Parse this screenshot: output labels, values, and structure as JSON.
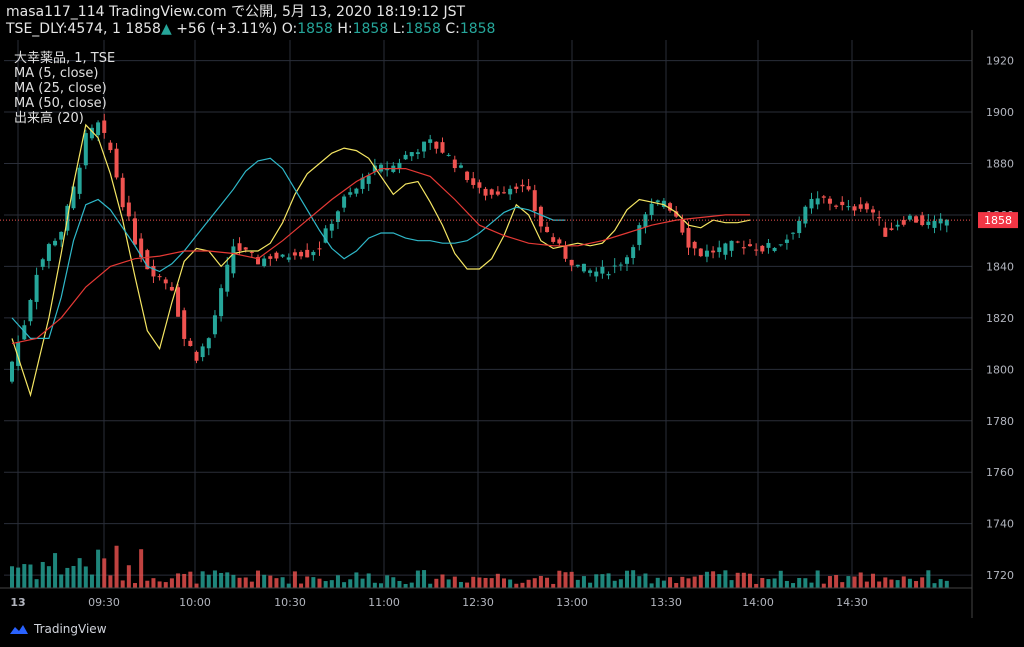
{
  "header": {
    "publish_line": "masa117_114 TradingView.com で公開, 5月 13, 2020 18:19:12 JST",
    "symbol": "TSE_DLY:4574, 1",
    "last": "1858",
    "change": "+56 (+3.11%)",
    "o_label": "O:",
    "o_value": "1858",
    "h_label": "H:",
    "h_value": "1858",
    "l_label": "L:",
    "l_value": "1858",
    "c_label": "C:",
    "c_value": "1858"
  },
  "legend": {
    "symbol_line": "大幸薬品, 1, TSE",
    "ma5": "MA (5, close)",
    "ma25": "MA (25, close)",
    "ma50": "MA (50, close)",
    "volume": "出来高 (20)"
  },
  "price_badge": "1858",
  "footer": {
    "brand": "TradingView"
  },
  "colors": {
    "up": "#26a69a",
    "down": "#ef5350",
    "ma5": "#f5e663",
    "ma25": "#2fb8c9",
    "ma50": "#e53935",
    "grid": "#2a2e39",
    "badge": "#f23645"
  },
  "chart_data": {
    "type": "candlestick",
    "y_ticks": [
      1720,
      1740,
      1760,
      1780,
      1800,
      1820,
      1840,
      1860,
      1880,
      1900,
      1920
    ],
    "ylim": [
      1715,
      1928
    ],
    "x_ticks": [
      "13",
      "09:30",
      "10:00",
      "10:30",
      "11:00",
      "12:30",
      "13:00",
      "13:30",
      "14:00",
      "14:30"
    ],
    "last_price": 1858,
    "price_path": [
      [
        0,
        1803
      ],
      [
        2,
        1818
      ],
      [
        4,
        1838
      ],
      [
        6,
        1848
      ],
      [
        8,
        1854
      ],
      [
        10,
        1870
      ],
      [
        12,
        1890
      ],
      [
        14,
        1895
      ],
      [
        16,
        1885
      ],
      [
        18,
        1865
      ],
      [
        20,
        1850
      ],
      [
        22,
        1840
      ],
      [
        24,
        1836
      ],
      [
        26,
        1832
      ],
      [
        28,
        1812
      ],
      [
        30,
        1805
      ],
      [
        32,
        1812
      ],
      [
        34,
        1830
      ],
      [
        36,
        1848
      ],
      [
        38,
        1845
      ],
      [
        40,
        1842
      ],
      [
        42,
        1844
      ],
      [
        44,
        1843
      ],
      [
        46,
        1846
      ],
      [
        48,
        1845
      ],
      [
        50,
        1848
      ],
      [
        52,
        1858
      ],
      [
        54,
        1866
      ],
      [
        56,
        1870
      ],
      [
        58,
        1877
      ],
      [
        60,
        1878
      ],
      [
        62,
        1879
      ],
      [
        64,
        1883
      ],
      [
        66,
        1886
      ],
      [
        68,
        1888
      ],
      [
        70,
        1885
      ],
      [
        72,
        1880
      ],
      [
        74,
        1875
      ],
      [
        76,
        1869
      ],
      [
        78,
        1868
      ],
      [
        80,
        1870
      ],
      [
        82,
        1872
      ],
      [
        84,
        1868
      ],
      [
        86,
        1856
      ],
      [
        88,
        1850
      ],
      [
        90,
        1844
      ],
      [
        92,
        1840
      ],
      [
        94,
        1838
      ],
      [
        96,
        1838
      ],
      [
        98,
        1840
      ],
      [
        100,
        1844
      ],
      [
        102,
        1855
      ],
      [
        104,
        1863
      ],
      [
        106,
        1866
      ],
      [
        108,
        1860
      ],
      [
        110,
        1849
      ],
      [
        112,
        1845
      ],
      [
        114,
        1846
      ],
      [
        116,
        1847
      ],
      [
        118,
        1849
      ],
      [
        120,
        1848
      ],
      [
        122,
        1847
      ],
      [
        124,
        1848
      ],
      [
        126,
        1851
      ],
      [
        128,
        1858
      ],
      [
        130,
        1865
      ],
      [
        132,
        1866
      ],
      [
        134,
        1864
      ],
      [
        136,
        1862
      ],
      [
        138,
        1864
      ],
      [
        140,
        1861
      ],
      [
        142,
        1853
      ],
      [
        144,
        1857
      ],
      [
        146,
        1859
      ],
      [
        148,
        1857
      ],
      [
        150,
        1856
      ],
      [
        152,
        1858
      ]
    ],
    "ma5_path": [
      [
        0,
        1812
      ],
      [
        3,
        1790
      ],
      [
        6,
        1820
      ],
      [
        8,
        1845
      ],
      [
        10,
        1872
      ],
      [
        12,
        1895
      ],
      [
        14,
        1890
      ],
      [
        16,
        1876
      ],
      [
        18,
        1858
      ],
      [
        20,
        1836
      ],
      [
        22,
        1815
      ],
      [
        24,
        1808
      ],
      [
        26,
        1826
      ],
      [
        28,
        1842
      ],
      [
        30,
        1847
      ],
      [
        32,
        1846
      ],
      [
        34,
        1840
      ],
      [
        36,
        1845
      ],
      [
        38,
        1846
      ],
      [
        40,
        1846
      ],
      [
        42,
        1849
      ],
      [
        44,
        1857
      ],
      [
        46,
        1868
      ],
      [
        48,
        1876
      ],
      [
        50,
        1880
      ],
      [
        52,
        1884
      ],
      [
        54,
        1886
      ],
      [
        56,
        1885
      ],
      [
        58,
        1882
      ],
      [
        60,
        1875
      ],
      [
        62,
        1868
      ],
      [
        64,
        1872
      ],
      [
        66,
        1873
      ],
      [
        68,
        1865
      ],
      [
        70,
        1856
      ],
      [
        72,
        1845
      ],
      [
        74,
        1839
      ],
      [
        76,
        1839
      ],
      [
        78,
        1843
      ],
      [
        80,
        1852
      ],
      [
        82,
        1864
      ],
      [
        84,
        1860
      ],
      [
        86,
        1850
      ],
      [
        88,
        1847
      ],
      [
        90,
        1848
      ],
      [
        92,
        1849
      ],
      [
        94,
        1848
      ],
      [
        96,
        1849
      ],
      [
        98,
        1854
      ],
      [
        100,
        1862
      ],
      [
        102,
        1866
      ],
      [
        104,
        1865
      ],
      [
        106,
        1864
      ],
      [
        108,
        1861
      ],
      [
        110,
        1856
      ],
      [
        112,
        1855
      ],
      [
        114,
        1858
      ],
      [
        116,
        1857
      ],
      [
        118,
        1857
      ],
      [
        120,
        1858
      ]
    ],
    "ma25_path": [
      [
        0,
        1820
      ],
      [
        3,
        1812
      ],
      [
        6,
        1812
      ],
      [
        8,
        1828
      ],
      [
        10,
        1850
      ],
      [
        12,
        1864
      ],
      [
        14,
        1866
      ],
      [
        16,
        1862
      ],
      [
        18,
        1855
      ],
      [
        20,
        1848
      ],
      [
        22,
        1840
      ],
      [
        24,
        1838
      ],
      [
        26,
        1841
      ],
      [
        28,
        1846
      ],
      [
        30,
        1852
      ],
      [
        32,
        1858
      ],
      [
        34,
        1864
      ],
      [
        36,
        1870
      ],
      [
        38,
        1877
      ],
      [
        40,
        1881
      ],
      [
        42,
        1882
      ],
      [
        44,
        1878
      ],
      [
        46,
        1870
      ],
      [
        48,
        1862
      ],
      [
        50,
        1854
      ],
      [
        52,
        1847
      ],
      [
        54,
        1843
      ],
      [
        56,
        1846
      ],
      [
        58,
        1851
      ],
      [
        60,
        1853
      ],
      [
        62,
        1853
      ],
      [
        64,
        1851
      ],
      [
        66,
        1850
      ],
      [
        68,
        1850
      ],
      [
        70,
        1849
      ],
      [
        72,
        1849
      ],
      [
        74,
        1850
      ],
      [
        76,
        1853
      ],
      [
        78,
        1857
      ],
      [
        80,
        1861
      ],
      [
        82,
        1863
      ],
      [
        84,
        1862
      ],
      [
        86,
        1860
      ],
      [
        88,
        1858
      ],
      [
        90,
        1858
      ]
    ],
    "ma50_path": [
      [
        0,
        1810
      ],
      [
        4,
        1812
      ],
      [
        8,
        1820
      ],
      [
        12,
        1832
      ],
      [
        16,
        1840
      ],
      [
        20,
        1843
      ],
      [
        24,
        1844
      ],
      [
        28,
        1846
      ],
      [
        32,
        1846
      ],
      [
        36,
        1845
      ],
      [
        40,
        1843
      ],
      [
        44,
        1850
      ],
      [
        48,
        1858
      ],
      [
        52,
        1866
      ],
      [
        56,
        1873
      ],
      [
        60,
        1878
      ],
      [
        64,
        1878
      ],
      [
        68,
        1875
      ],
      [
        72,
        1866
      ],
      [
        76,
        1856
      ],
      [
        80,
        1852
      ],
      [
        84,
        1849
      ],
      [
        88,
        1848
      ],
      [
        92,
        1848
      ],
      [
        96,
        1850
      ],
      [
        100,
        1853
      ],
      [
        104,
        1856
      ],
      [
        108,
        1858
      ],
      [
        112,
        1859
      ],
      [
        116,
        1860
      ],
      [
        120,
        1860
      ]
    ]
  }
}
